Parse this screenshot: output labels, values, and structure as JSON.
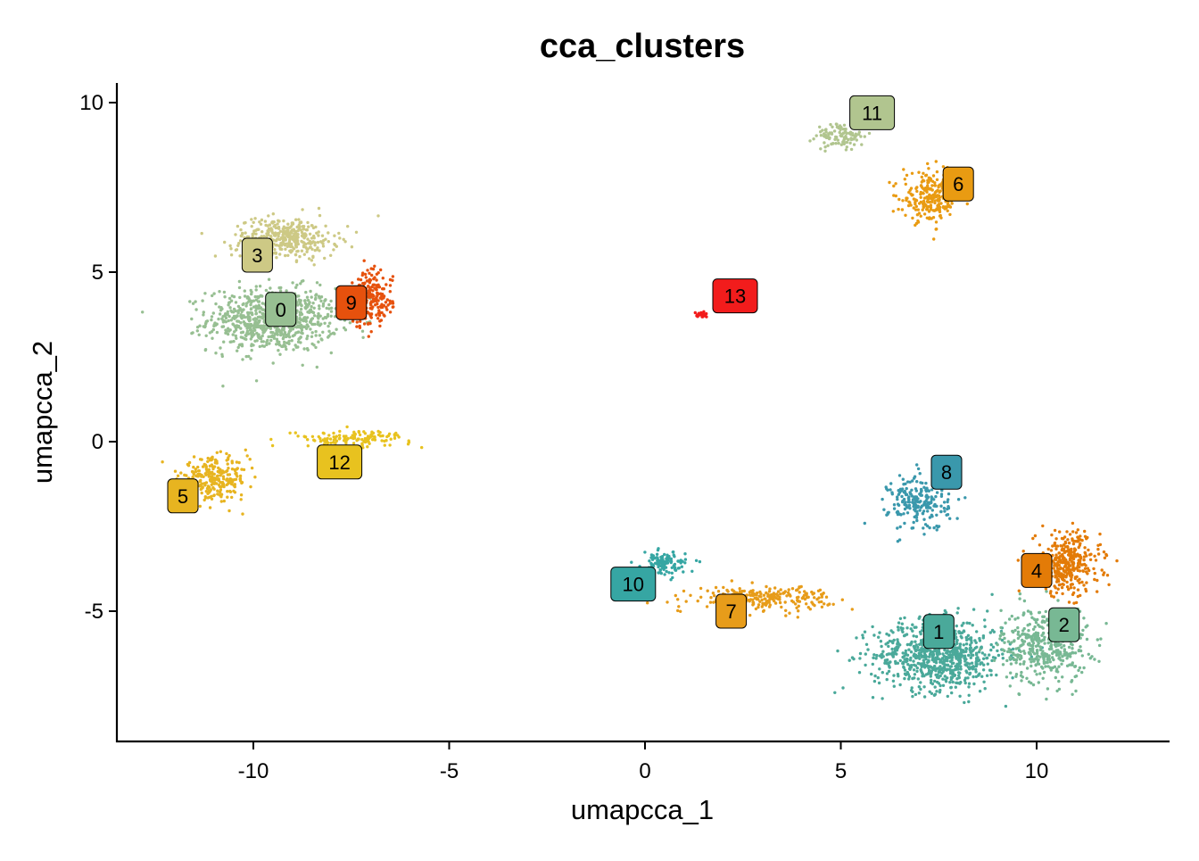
{
  "chart_data": {
    "type": "scatter",
    "title": "cca_clusters",
    "xlabel": "umapcca_1",
    "ylabel": "umapcca_2",
    "xlim": [
      -13.5,
      13.5
    ],
    "ylim": [
      -8.9,
      10.6
    ],
    "x_ticks": [
      -10,
      -5,
      0,
      5,
      10
    ],
    "y_ticks": [
      10,
      5,
      0,
      -5
    ],
    "x_tick_labels": [
      "-10",
      "-5",
      "0",
      "5",
      "10"
    ],
    "y_tick_labels": [
      "10",
      "5",
      "0",
      "-5"
    ],
    "grid": false,
    "legend": "none",
    "clusters": [
      {
        "label": "0",
        "color": "#97bf92",
        "label_pos": [
          -9.3,
          3.9
        ],
        "center": [
          -9.5,
          3.6
        ],
        "spread": [
          1.5,
          0.85
        ],
        "n": 820
      },
      {
        "label": "1",
        "color": "#4aa99a",
        "label_pos": [
          7.5,
          -5.6
        ],
        "center": [
          7.5,
          -6.3
        ],
        "spread": [
          1.5,
          0.95
        ],
        "n": 760
      },
      {
        "label": "2",
        "color": "#78b894",
        "label_pos": [
          10.7,
          -5.4
        ],
        "center": [
          10.2,
          -6.0
        ],
        "spread": [
          1.0,
          1.0
        ],
        "n": 420
      },
      {
        "label": "3",
        "color": "#cdc985",
        "label_pos": [
          -9.9,
          5.5
        ],
        "center": [
          -9.2,
          6.0
        ],
        "spread": [
          1.2,
          0.55
        ],
        "n": 380
      },
      {
        "label": "4",
        "color": "#e37b07",
        "label_pos": [
          10.0,
          -3.8
        ],
        "center": [
          10.8,
          -3.6
        ],
        "spread": [
          0.75,
          0.85
        ],
        "n": 340
      },
      {
        "label": "5",
        "color": "#e7b420",
        "label_pos": [
          -11.8,
          -1.6
        ],
        "center": [
          -11.0,
          -1.1
        ],
        "spread": [
          0.8,
          0.55
        ],
        "n": 260
      },
      {
        "label": "6",
        "color": "#e99b12",
        "label_pos": [
          8.0,
          7.6
        ],
        "center": [
          7.3,
          7.2
        ],
        "spread": [
          0.65,
          0.65
        ],
        "n": 240
      },
      {
        "label": "7",
        "color": "#e79c1a",
        "label_pos": [
          2.2,
          -5.0
        ],
        "center": [
          3.0,
          -4.6
        ],
        "spread": [
          1.6,
          0.3
        ],
        "n": 250
      },
      {
        "label": "8",
        "color": "#3a98ac",
        "label_pos": [
          7.7,
          -0.9
        ],
        "center": [
          7.0,
          -1.8
        ],
        "spread": [
          0.7,
          0.75
        ],
        "n": 220
      },
      {
        "label": "9",
        "color": "#e6510d",
        "label_pos": [
          -7.5,
          4.1
        ],
        "center": [
          -7.0,
          4.2
        ],
        "spread": [
          0.5,
          0.75
        ],
        "n": 210
      },
      {
        "label": "10",
        "color": "#36a6a3",
        "label_pos": [
          -0.3,
          -4.2
        ],
        "center": [
          0.5,
          -3.6
        ],
        "spread": [
          0.5,
          0.3
        ],
        "n": 120
      },
      {
        "label": "11",
        "color": "#b1c58f",
        "label_pos": [
          5.8,
          9.7
        ],
        "center": [
          5.0,
          9.0
        ],
        "spread": [
          0.55,
          0.35
        ],
        "n": 110
      },
      {
        "label": "12",
        "color": "#e8c21f",
        "label_pos": [
          -7.8,
          -0.6
        ],
        "center": [
          -7.5,
          0.1
        ],
        "spread": [
          1.4,
          0.2
        ],
        "n": 130
      },
      {
        "label": "13",
        "color": "#f21c1c",
        "label_pos": [
          2.3,
          4.3
        ],
        "center": [
          1.45,
          3.75
        ],
        "spread": [
          0.12,
          0.06
        ],
        "n": 30
      }
    ]
  }
}
